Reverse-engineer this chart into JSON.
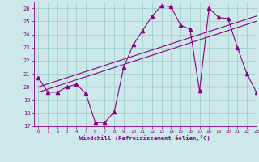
{
  "title": "",
  "xlabel": "Windchill (Refroidissement éolien,°C)",
  "hours": [
    0,
    1,
    2,
    3,
    4,
    5,
    6,
    7,
    8,
    9,
    10,
    11,
    12,
    13,
    14,
    15,
    16,
    17,
    18,
    19,
    20,
    21,
    22,
    23
  ],
  "windchill": [
    20.7,
    19.6,
    19.6,
    20.0,
    20.2,
    19.5,
    17.3,
    17.3,
    18.1,
    21.5,
    23.2,
    24.3,
    25.4,
    26.2,
    26.1,
    24.7,
    24.4,
    19.7,
    26.0,
    25.3,
    25.2,
    23.0,
    21.0,
    19.6
  ],
  "flat_line_y": 20.0,
  "diag_line1_x": [
    0,
    23
  ],
  "diag_line1_y": [
    20.0,
    25.4
  ],
  "diag_line2_x": [
    0,
    23
  ],
  "diag_line2_y": [
    19.6,
    25.0
  ],
  "ylim": [
    17,
    26.5
  ],
  "xlim": [
    -0.5,
    23
  ],
  "yticks": [
    17,
    18,
    19,
    20,
    21,
    22,
    23,
    24,
    25,
    26
  ],
  "xticks": [
    0,
    1,
    2,
    3,
    4,
    5,
    6,
    7,
    8,
    9,
    10,
    11,
    12,
    13,
    14,
    15,
    16,
    17,
    18,
    19,
    20,
    21,
    22,
    23
  ],
  "bg_color": "#cce8e8",
  "line_color": "#880088",
  "grid_color": "#99cccc",
  "label_color": "#880088",
  "markersize": 3,
  "linewidth": 0.8
}
